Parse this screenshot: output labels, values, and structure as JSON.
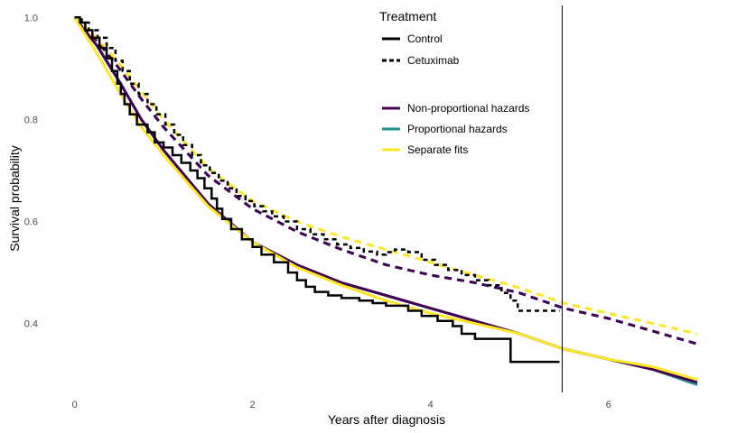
{
  "chart_data": {
    "type": "line",
    "title": "",
    "xlabel": "Years after diagnosis",
    "ylabel": "Survival probability",
    "xlim": [
      -0.25,
      7.1
    ],
    "ylim": [
      0.265,
      1.02
    ],
    "x_ticks": [
      0,
      2,
      4,
      6
    ],
    "y_ticks": [
      0.4,
      0.6,
      0.8,
      1.0
    ],
    "x_tick_labels": [
      "0",
      "2",
      "4",
      "6"
    ],
    "y_tick_labels": [
      "0.4",
      "0.6",
      "0.8",
      "1.0"
    ],
    "grid": false,
    "vline": {
      "x": 5.48
    },
    "legend": {
      "title": "Treatment",
      "placement": "top-center",
      "treatment_items": [
        {
          "label": "Control",
          "style": "solid"
        },
        {
          "label": "Cetuximab",
          "style": "dashed"
        }
      ],
      "model_items": [
        {
          "label": "Non-proportional hazards",
          "color": "#440154"
        },
        {
          "label": "Proportional hazards",
          "color": "#21908C"
        },
        {
          "label": "Separate fits",
          "color": "#FDE725"
        }
      ]
    },
    "series": [
      {
        "name": "Control",
        "kind": "km",
        "color": "#000000",
        "dash": "solid",
        "x": [
          0,
          0.06,
          0.12,
          0.2,
          0.28,
          0.36,
          0.42,
          0.48,
          0.52,
          0.56,
          0.62,
          0.7,
          0.82,
          0.9,
          1.0,
          1.1,
          1.2,
          1.3,
          1.38,
          1.46,
          1.54,
          1.6,
          1.66,
          1.76,
          1.88,
          2.0,
          2.1,
          2.24,
          2.4,
          2.5,
          2.6,
          2.7,
          2.85,
          3.0,
          3.2,
          3.35,
          3.5,
          3.75,
          3.9,
          4.08,
          4.25,
          4.35,
          4.5,
          4.9,
          5.45
        ],
        "y": [
          1.0,
          0.99,
          0.975,
          0.96,
          0.94,
          0.92,
          0.895,
          0.87,
          0.85,
          0.83,
          0.81,
          0.79,
          0.775,
          0.755,
          0.745,
          0.73,
          0.715,
          0.7,
          0.685,
          0.665,
          0.645,
          0.625,
          0.605,
          0.585,
          0.565,
          0.55,
          0.535,
          0.52,
          0.5,
          0.485,
          0.472,
          0.462,
          0.455,
          0.45,
          0.445,
          0.44,
          0.435,
          0.425,
          0.415,
          0.405,
          0.395,
          0.38,
          0.37,
          0.325,
          0.325
        ]
      },
      {
        "name": "Cetuximab",
        "kind": "km",
        "color": "#000000",
        "dash": "dashed",
        "x": [
          0,
          0.08,
          0.16,
          0.26,
          0.36,
          0.46,
          0.54,
          0.62,
          0.72,
          0.82,
          0.92,
          1.02,
          1.12,
          1.22,
          1.32,
          1.42,
          1.52,
          1.62,
          1.72,
          1.82,
          1.92,
          2.02,
          2.12,
          2.22,
          2.35,
          2.5,
          2.65,
          2.8,
          2.95,
          3.1,
          3.25,
          3.4,
          3.5,
          3.6,
          3.75,
          3.9,
          4.05,
          4.2,
          4.35,
          4.5,
          4.65,
          4.8,
          4.9,
          4.98,
          5.45
        ],
        "y": [
          1.0,
          0.99,
          0.975,
          0.96,
          0.94,
          0.915,
          0.895,
          0.87,
          0.85,
          0.83,
          0.81,
          0.79,
          0.77,
          0.75,
          0.73,
          0.71,
          0.695,
          0.68,
          0.665,
          0.65,
          0.64,
          0.63,
          0.62,
          0.61,
          0.6,
          0.585,
          0.575,
          0.565,
          0.555,
          0.548,
          0.541,
          0.535,
          0.54,
          0.545,
          0.54,
          0.525,
          0.515,
          0.505,
          0.495,
          0.485,
          0.475,
          0.46,
          0.445,
          0.425,
          0.425
        ]
      },
      {
        "name": "Non-proportional hazards",
        "kind": "model",
        "group": "Control",
        "color": "#440154",
        "dash": "solid",
        "x": [
          0,
          0.25,
          0.5,
          0.75,
          1.0,
          1.5,
          2.0,
          2.5,
          3.0,
          3.5,
          4.0,
          4.5,
          5.0,
          5.5,
          6.0,
          6.5,
          7.0
        ],
        "y": [
          1.0,
          0.945,
          0.875,
          0.8,
          0.74,
          0.635,
          0.56,
          0.515,
          0.48,
          0.455,
          0.43,
          0.405,
          0.38,
          0.35,
          0.33,
          0.31,
          0.285
        ]
      },
      {
        "name": "Non-proportional hazards",
        "kind": "model",
        "group": "Cetuximab",
        "color": "#440154",
        "dash": "dashed",
        "x": [
          0,
          0.25,
          0.5,
          0.75,
          1.0,
          1.5,
          2.0,
          2.5,
          3.0,
          3.5,
          4.0,
          4.5,
          5.0,
          5.5,
          6.0,
          6.5,
          7.0
        ],
        "y": [
          1.0,
          0.955,
          0.9,
          0.84,
          0.785,
          0.69,
          0.625,
          0.58,
          0.545,
          0.515,
          0.495,
          0.48,
          0.46,
          0.43,
          0.41,
          0.385,
          0.36
        ]
      },
      {
        "name": "Proportional hazards",
        "kind": "model",
        "group": "Control",
        "color": "#21908C",
        "dash": "solid",
        "x": [
          0,
          0.25,
          0.5,
          0.75,
          1.0,
          1.5,
          2.0,
          2.5,
          3.0,
          3.5,
          4.0,
          4.5,
          5.0,
          5.5,
          6.0,
          6.5,
          7.0
        ],
        "y": [
          1.0,
          0.945,
          0.875,
          0.8,
          0.74,
          0.635,
          0.56,
          0.515,
          0.48,
          0.455,
          0.43,
          0.405,
          0.38,
          0.35,
          0.33,
          0.31,
          0.28
        ]
      },
      {
        "name": "Proportional hazards",
        "kind": "model",
        "group": "Cetuximab",
        "color": "#21908C",
        "dash": "dashed",
        "x": [
          0,
          0.25,
          0.5,
          0.75,
          1.0,
          1.5,
          2.0,
          2.5,
          3.0,
          3.5,
          4.0,
          4.5,
          5.0,
          5.5,
          6.0,
          6.5,
          7.0
        ],
        "y": [
          1.0,
          0.955,
          0.9,
          0.84,
          0.785,
          0.69,
          0.625,
          0.58,
          0.545,
          0.515,
          0.495,
          0.48,
          0.46,
          0.43,
          0.41,
          0.385,
          0.36
        ]
      },
      {
        "name": "Separate fits",
        "kind": "model",
        "group": "Control",
        "color": "#FDE725",
        "dash": "solid",
        "x": [
          0,
          0.25,
          0.5,
          0.75,
          1.0,
          1.5,
          2.0,
          2.5,
          3.0,
          3.5,
          4.0,
          4.5,
          5.0,
          5.5,
          6.0,
          6.5,
          7.0
        ],
        "y": [
          1.0,
          0.93,
          0.855,
          0.785,
          0.73,
          0.63,
          0.56,
          0.51,
          0.475,
          0.445,
          0.42,
          0.4,
          0.38,
          0.35,
          0.33,
          0.315,
          0.29
        ]
      },
      {
        "name": "Separate fits",
        "kind": "model",
        "group": "Cetuximab",
        "color": "#FDE725",
        "dash": "dashed",
        "x": [
          0,
          0.25,
          0.5,
          0.75,
          1.0,
          1.5,
          2.0,
          2.5,
          3.0,
          3.5,
          4.0,
          4.5,
          5.0,
          5.5,
          6.0,
          6.5,
          7.0
        ],
        "y": [
          1.0,
          0.96,
          0.91,
          0.855,
          0.8,
          0.705,
          0.64,
          0.6,
          0.57,
          0.545,
          0.52,
          0.495,
          0.47,
          0.44,
          0.42,
          0.4,
          0.38
        ]
      }
    ]
  }
}
